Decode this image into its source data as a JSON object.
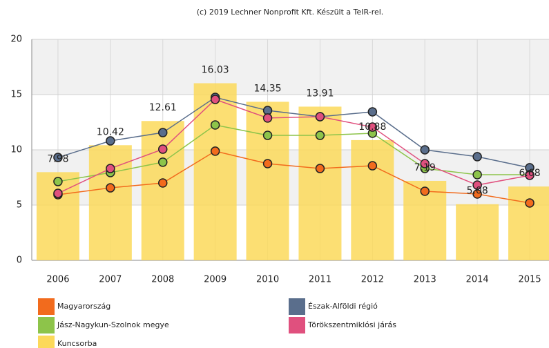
{
  "chart_data": {
    "type": "bar-line",
    "title": "(c) 2019 Lechner Nonprofit Kft. Készült a TeIR-rel.",
    "categories": [
      "2006",
      "2007",
      "2008",
      "2009",
      "2010",
      "2011",
      "2012",
      "2013",
      "2014",
      "2015"
    ],
    "ylim": [
      0,
      20
    ],
    "yticks": [
      0,
      5,
      10,
      15,
      20
    ],
    "grid": true,
    "series": [
      {
        "name": "Magyarország",
        "type": "line",
        "color": "#f26b1d",
        "values": [
          5.94,
          6.56,
          7.0,
          9.88,
          8.75,
          8.31,
          8.56,
          6.25,
          6.0,
          5.19
        ]
      },
      {
        "name": "Észak-Alföldi régió",
        "type": "line",
        "color": "#5a6e8c",
        "values": [
          9.31,
          10.81,
          11.56,
          14.75,
          13.56,
          13.0,
          13.44,
          10.0,
          9.38,
          8.38
        ]
      },
      {
        "name": "Jász-Nagykun-Szolnok megye",
        "type": "line",
        "color": "#8dc44a",
        "values": [
          7.13,
          7.94,
          8.88,
          12.25,
          11.31,
          11.31,
          11.5,
          8.31,
          7.75,
          7.75
        ]
      },
      {
        "name": "Törökszentmiklósi járás",
        "type": "line",
        "color": "#e0507e",
        "values": [
          6.06,
          8.31,
          10.06,
          14.56,
          12.88,
          13.0,
          12.06,
          8.75,
          6.81,
          7.69
        ]
      },
      {
        "name": "Kuncsorba",
        "type": "bar",
        "color": "#fcd95a",
        "values": [
          7.98,
          10.42,
          12.61,
          16.03,
          14.35,
          13.91,
          10.88,
          7.19,
          5.08,
          6.68
        ]
      }
    ]
  }
}
